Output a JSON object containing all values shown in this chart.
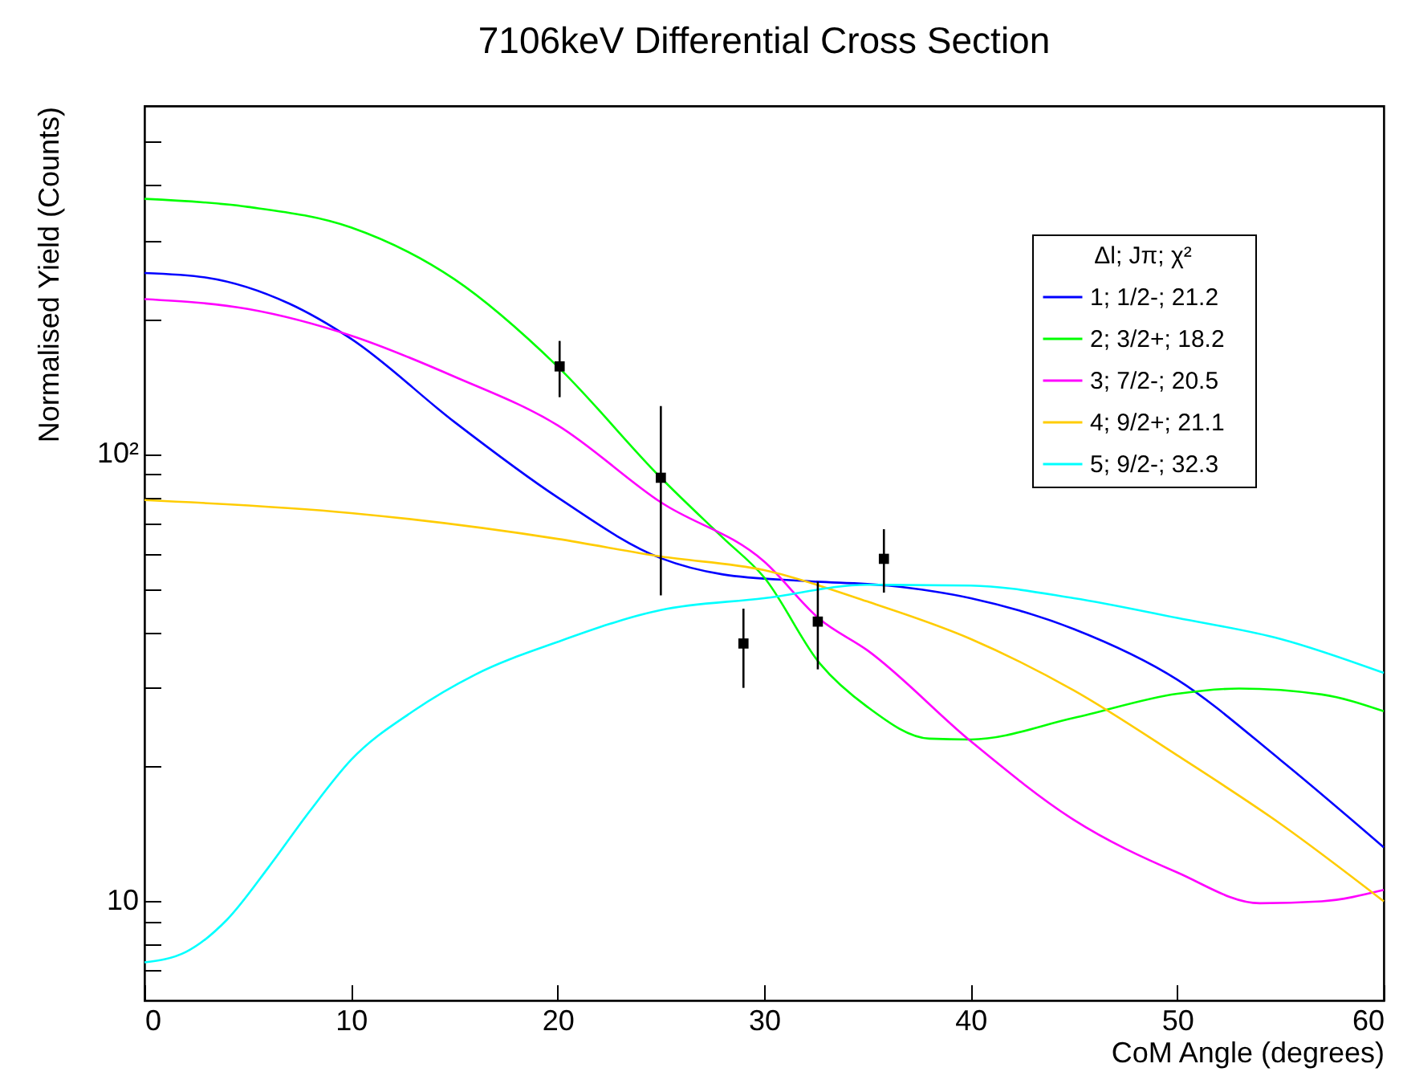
{
  "chart_data": {
    "type": "line",
    "title": "7106keV Differential Cross Section",
    "xlabel": "CoM Angle (degrees)",
    "ylabel": "Normalised Yield (Counts)",
    "legend_title": "Δl;  Jπ;  χ²",
    "legend": "top right",
    "log": "y",
    "grid": false,
    "xlim": [
      0,
      60
    ],
    "xticks": [
      0,
      10,
      20,
      30,
      40,
      50,
      60
    ],
    "ylim": [
      6,
      600
    ],
    "yticks": [
      {
        "value": 7,
        "label": null
      },
      {
        "value": 8,
        "label": null
      },
      {
        "value": 9,
        "label": null
      },
      10,
      {
        "value": 20,
        "label": null
      },
      {
        "value": 30,
        "label": null
      },
      {
        "value": 40,
        "label": null
      },
      {
        "value": 50,
        "label": null
      },
      {
        "value": 60,
        "label": null
      },
      {
        "value": 70,
        "label": null
      },
      {
        "value": 80,
        "label": null
      },
      {
        "value": 90,
        "label": null
      },
      {
        "value": 100,
        "label": "10²"
      },
      {
        "value": 200,
        "label": null
      },
      {
        "value": 300,
        "label": null
      },
      {
        "value": 400,
        "label": null
      },
      {
        "value": 500,
        "label": null
      }
    ],
    "series": [
      {
        "name": "1;   1/2-;  21.2",
        "color": "#0000ff",
        "x": [
          0,
          3,
          7,
          10,
          15,
          20,
          25,
          28,
          32,
          36,
          40,
          45,
          50,
          55,
          60
        ],
        "values": [
          254,
          248,
          217,
          181,
          118,
          80,
          58.5,
          53.8,
          52,
          50.8,
          47.6,
          40.6,
          31.3,
          20.7,
          13.2
        ]
      },
      {
        "name": "2;   3/2+;  18.2",
        "color": "#00ff00",
        "x": [
          0,
          5,
          10,
          15,
          20,
          25,
          28,
          30,
          32.7,
          35,
          38,
          40,
          45,
          50,
          53,
          57,
          60
        ],
        "values": [
          372,
          357,
          321,
          246,
          157,
          88.5,
          65,
          53,
          34,
          27.2,
          23.1,
          23,
          25.7,
          29.1,
          29.9,
          29,
          26.6
        ]
      },
      {
        "name": "3;   7/2-;  20.5",
        "color": "#ff00ff",
        "x": [
          0,
          5,
          10,
          15,
          20,
          25,
          30,
          32.7,
          35,
          40,
          45,
          50,
          54,
          57,
          60
        ],
        "values": [
          222,
          211,
          184,
          149,
          116,
          78,
          57.5,
          42.7,
          36.4,
          22.8,
          15.2,
          11.6,
          9.9,
          10,
          10.6
        ]
      },
      {
        "name": "4;   9/2+;  21.1",
        "color": "#ffcc00",
        "x": [
          0,
          10,
          20,
          25,
          30,
          35,
          40,
          45,
          50,
          55,
          60
        ],
        "values": [
          78.9,
          73.8,
          64.6,
          59,
          55,
          46.8,
          38.6,
          29.6,
          21.2,
          14.9,
          10
        ]
      },
      {
        "name": "5;   9/2-;  32.3",
        "color": "#00ffff",
        "x": [
          0,
          2,
          4,
          6,
          8,
          10,
          13,
          16,
          20,
          25,
          30,
          35,
          40,
          45,
          50,
          55,
          60
        ],
        "values": [
          7.3,
          7.7,
          9.1,
          11.9,
          15.9,
          20.7,
          26.6,
          32.1,
          38,
          44.8,
          47.6,
          51,
          50.8,
          47.6,
          43,
          38.6,
          32.4
        ]
      },
      {
        "type": "scatter",
        "marker": "square",
        "color": "#000000",
        "x": [
          20.1,
          25,
          29,
          32.6,
          35.8
        ],
        "values": [
          157,
          88.5,
          37.7,
          42.2,
          58.3
        ],
        "errors": [
          [
            134,
            179
          ],
          [
            48.3,
            128
          ],
          [
            30,
            45.1
          ],
          [
            33,
            51.8
          ],
          [
            49,
            67.9
          ]
        ]
      }
    ]
  }
}
